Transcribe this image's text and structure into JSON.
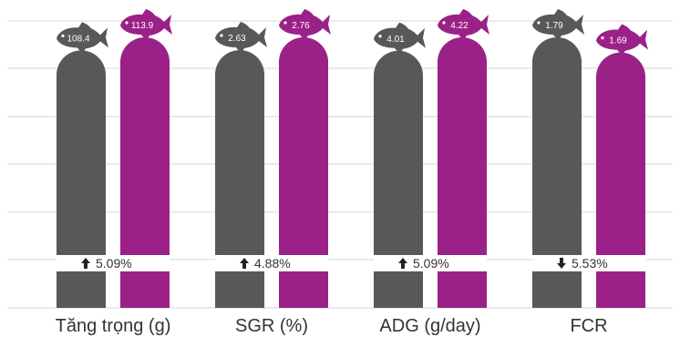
{
  "chart_data": {
    "type": "bar",
    "title": "",
    "categories": [
      "Tăng trọng (g)",
      "SGR (%)",
      "ADG (g/day)",
      "FCR"
    ],
    "series": [
      {
        "color": "#58585a",
        "values": [
          108.4,
          2.63,
          4.01,
          1.79
        ]
      },
      {
        "color": "#9b2189",
        "values": [
          113.9,
          2.76,
          4.22,
          1.69
        ]
      }
    ],
    "value_labels": [
      [
        "108.4",
        "113.9"
      ],
      [
        "2.63",
        "2.76"
      ],
      [
        "4.01",
        "4.22"
      ],
      [
        "1.79",
        "1.69"
      ]
    ],
    "changes": [
      {
        "direction": "up",
        "text": "5.09%"
      },
      {
        "direction": "up",
        "text": "4.88%"
      },
      {
        "direction": "up",
        "text": "5.09%"
      },
      {
        "direction": "down",
        "text": "5.53%"
      }
    ],
    "grid": true,
    "marker_icon": "fish-icon"
  }
}
